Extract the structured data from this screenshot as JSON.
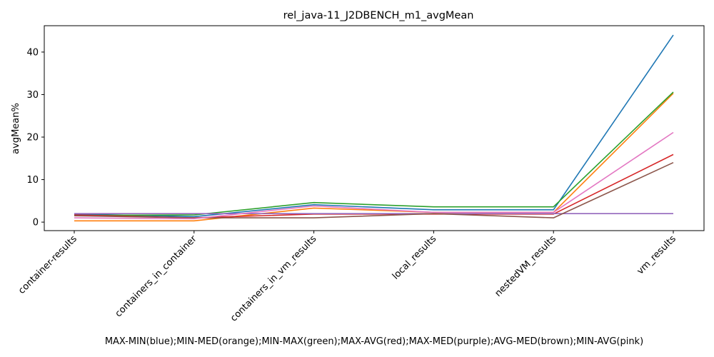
{
  "chart_data": {
    "type": "line",
    "title": "rel_java-11_J2DBENCH_m1_avgMean",
    "xlabel": "MAX-MIN(blue);MIN-MED(orange);MIN-MAX(green);MAX-AVG(red);MAX-MED(purple);AVG-MED(brown);MIN-AVG(pink)",
    "ylabel": "avgMean%",
    "categories": [
      "container-results",
      "containers_in_container",
      "containers_in_vm_results",
      "local_results",
      "nestedVM_results",
      "vm_results"
    ],
    "yticks": [
      0,
      10,
      20,
      30,
      40
    ],
    "ylim": [
      -2.0,
      46.2
    ],
    "grid": false,
    "series": [
      {
        "color": "#1f77b4",
        "values": [
          1.9,
          1.3,
          4.1,
          2.9,
          2.9,
          44.0
        ]
      },
      {
        "color": "#ff7f0e",
        "values": [
          0.3,
          0.3,
          3.3,
          2.3,
          2.3,
          30.3
        ]
      },
      {
        "color": "#2ca02c",
        "values": [
          1.6,
          1.7,
          4.6,
          3.6,
          3.6,
          30.6
        ]
      },
      {
        "color": "#d62728",
        "values": [
          1.7,
          1.0,
          1.9,
          1.9,
          1.9,
          15.9
        ]
      },
      {
        "color": "#9467bd",
        "values": [
          2.0,
          2.0,
          2.0,
          2.0,
          2.0,
          2.0
        ]
      },
      {
        "color": "#8c564b",
        "values": [
          1.5,
          1.0,
          1.0,
          2.0,
          1.0,
          14.0
        ]
      },
      {
        "color": "#e377c2",
        "values": [
          1.0,
          0.8,
          3.8,
          2.3,
          2.3,
          21.1
        ]
      }
    ]
  }
}
